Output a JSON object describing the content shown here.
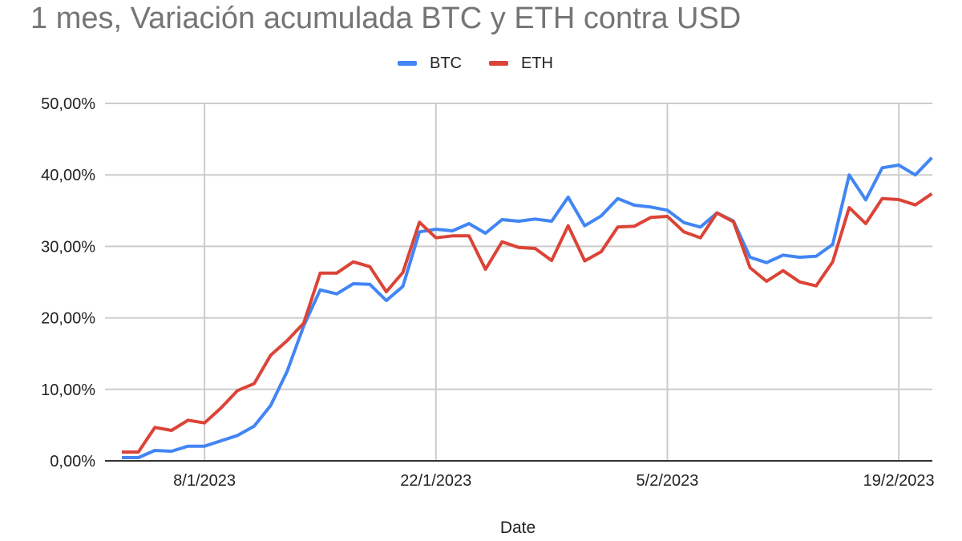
{
  "chart_data": {
    "type": "line",
    "title": "1 mes, Variación acumulada BTC y ETH contra USD",
    "xlabel": "Date",
    "ylabel": "",
    "ylim": [
      0,
      50
    ],
    "yticks": [
      "0,00%",
      "10,00%",
      "20,00%",
      "30,00%",
      "40,00%",
      "50,00%"
    ],
    "ytick_values": [
      0,
      10,
      20,
      30,
      40,
      50
    ],
    "xticks": [
      {
        "label": "8/1/2023",
        "index": 5
      },
      {
        "label": "22/1/2023",
        "index": 19
      },
      {
        "label": "5/2/2023",
        "index": 33
      },
      {
        "label": "19/2/2023",
        "index": 47
      }
    ],
    "grid": true,
    "legend_position": "top",
    "x": [
      "3/1/2023",
      "4/1/2023",
      "5/1/2023",
      "6/1/2023",
      "7/1/2023",
      "8/1/2023",
      "9/1/2023",
      "10/1/2023",
      "11/1/2023",
      "12/1/2023",
      "13/1/2023",
      "14/1/2023",
      "15/1/2023",
      "16/1/2023",
      "17/1/2023",
      "18/1/2023",
      "19/1/2023",
      "20/1/2023",
      "21/1/2023",
      "22/1/2023",
      "23/1/2023",
      "24/1/2023",
      "25/1/2023",
      "26/1/2023",
      "27/1/2023",
      "28/1/2023",
      "29/1/2023",
      "30/1/2023",
      "31/1/2023",
      "1/2/2023",
      "2/2/2023",
      "3/2/2023",
      "4/2/2023",
      "5/2/2023",
      "6/2/2023",
      "7/2/2023",
      "8/2/2023",
      "9/2/2023",
      "10/2/2023",
      "11/2/2023",
      "12/2/2023",
      "13/2/2023",
      "14/2/2023",
      "15/2/2023",
      "16/2/2023",
      "17/2/2023",
      "18/2/2023",
      "19/2/2023",
      "20/2/2023",
      "21/2/2023"
    ],
    "series": [
      {
        "name": "BTC",
        "color": "#4285f4",
        "values": [
          0.45,
          0.45,
          1.46,
          1.35,
          2.05,
          2.05,
          2.8,
          3.55,
          4.85,
          7.74,
          12.52,
          18.87,
          23.91,
          23.35,
          24.78,
          24.7,
          22.42,
          24.41,
          32.03,
          32.4,
          32.17,
          33.18,
          31.84,
          33.74,
          33.52,
          33.82,
          33.52,
          36.88,
          32.88,
          34.27,
          36.69,
          35.76,
          35.5,
          35.06,
          33.33,
          32.7,
          34.68,
          33.55,
          28.48,
          27.72,
          28.78,
          28.48,
          28.62,
          30.27,
          39.99,
          36.51,
          41.0,
          41.37,
          39.99,
          42.41
        ]
      },
      {
        "name": "ETH",
        "color": "#db4437",
        "values": [
          1.23,
          1.23,
          4.67,
          4.26,
          5.68,
          5.3,
          7.4,
          9.83,
          10.8,
          14.76,
          16.82,
          19.25,
          26.27,
          26.27,
          27.84,
          27.16,
          23.65,
          26.35,
          33.37,
          31.2,
          31.47,
          31.47,
          26.79,
          30.64,
          29.85,
          29.71,
          28.03,
          32.88,
          27.97,
          29.26,
          32.7,
          32.81,
          34.05,
          34.19,
          32.03,
          31.2,
          34.68,
          33.44,
          27.02,
          25.11,
          26.6,
          25.03,
          24.47,
          27.84,
          35.43,
          33.18,
          36.69,
          36.55,
          35.8,
          37.37
        ]
      }
    ]
  },
  "legend": {
    "items": [
      {
        "label": "BTC",
        "color": "#4285f4"
      },
      {
        "label": "ETH",
        "color": "#db4437"
      }
    ]
  }
}
